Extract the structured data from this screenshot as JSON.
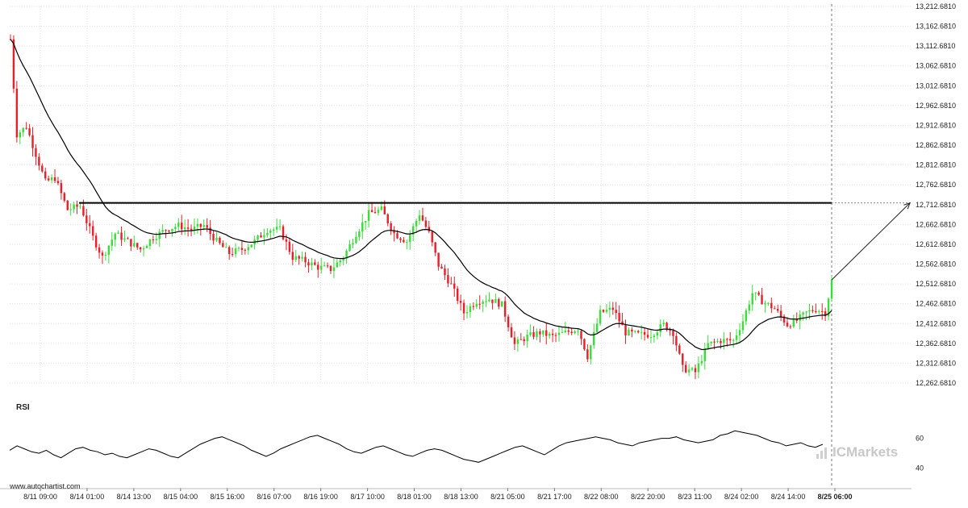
{
  "chart_data": {
    "type": "candlestick",
    "y_axis": {
      "min": 12262.681,
      "max": 13212.681,
      "ticks": [
        "13,212.6810",
        "13,162.6810",
        "13,112.6810",
        "13,062.6810",
        "13,012.6810",
        "12,962.6810",
        "12,912.6810",
        "12,862.6810",
        "12,812.6810",
        "12,762.6810",
        "12,712.6810",
        "12,662.6810",
        "12,612.6810",
        "12,562.6810",
        "12,512.6810",
        "12,462.6810",
        "12,412.6810",
        "12,362.6810",
        "12,312.6810",
        "12,262.6810"
      ]
    },
    "x_axis": {
      "ticks": [
        "8/11 09:00",
        "8/14 01:00",
        "8/14 13:00",
        "8/15 04:00",
        "8/15 16:00",
        "8/16 07:00",
        "8/16 19:00",
        "8/17 10:00",
        "8/18 01:00",
        "8/18 13:00",
        "8/21 05:00",
        "8/21 17:00",
        "8/22 08:00",
        "8/22 20:00",
        "8/23 11:00",
        "8/24 02:00",
        "8/24 14:00",
        "8/25 06:00"
      ],
      "highlighted": "8/25 06:00"
    },
    "resistance_level": 12717,
    "projection_target": 12717,
    "anchors": [
      [
        0,
        13130
      ],
      [
        2,
        12890
      ],
      [
        5,
        12910
      ],
      [
        8,
        12840
      ],
      [
        11,
        12770
      ],
      [
        14,
        12780
      ],
      [
        18,
        12700
      ],
      [
        22,
        12710
      ],
      [
        26,
        12630
      ],
      [
        29,
        12580
      ],
      [
        33,
        12640
      ],
      [
        37,
        12620
      ],
      [
        41,
        12600
      ],
      [
        45,
        12630
      ],
      [
        49,
        12650
      ],
      [
        53,
        12660
      ],
      [
        57,
        12650
      ],
      [
        61,
        12660
      ],
      [
        65,
        12620
      ],
      [
        69,
        12590
      ],
      [
        73,
        12600
      ],
      [
        77,
        12620
      ],
      [
        81,
        12650
      ],
      [
        85,
        12650
      ],
      [
        89,
        12580
      ],
      [
        93,
        12570
      ],
      [
        97,
        12555
      ],
      [
        101,
        12550
      ],
      [
        105,
        12580
      ],
      [
        109,
        12640
      ],
      [
        113,
        12690
      ],
      [
        117,
        12700
      ],
      [
        121,
        12640
      ],
      [
        125,
        12620
      ],
      [
        129,
        12690
      ],
      [
        132,
        12640
      ],
      [
        135,
        12560
      ],
      [
        139,
        12510
      ],
      [
        143,
        12440
      ],
      [
        147,
        12470
      ],
      [
        151,
        12475
      ],
      [
        155,
        12460
      ],
      [
        159,
        12360
      ],
      [
        163,
        12380
      ],
      [
        167,
        12390
      ],
      [
        171,
        12380
      ],
      [
        175,
        12390
      ],
      [
        179,
        12400
      ],
      [
        182,
        12330
      ],
      [
        186,
        12440
      ],
      [
        190,
        12450
      ],
      [
        194,
        12390
      ],
      [
        198,
        12385
      ],
      [
        202,
        12385
      ],
      [
        206,
        12410
      ],
      [
        209,
        12390
      ],
      [
        212,
        12300
      ],
      [
        216,
        12290
      ],
      [
        220,
        12360
      ],
      [
        224,
        12370
      ],
      [
        228,
        12370
      ],
      [
        231,
        12420
      ],
      [
        234,
        12490
      ],
      [
        237,
        12470
      ],
      [
        241,
        12450
      ],
      [
        245,
        12410
      ],
      [
        248,
        12420
      ],
      [
        251,
        12440
      ],
      [
        254,
        12450
      ],
      [
        257,
        12440
      ],
      [
        259,
        12520
      ]
    ],
    "series": [
      {
        "name": "RSI",
        "values": [
          52,
          55,
          53,
          51,
          50,
          52,
          49,
          47,
          50,
          53,
          54,
          52,
          51,
          49,
          50,
          48,
          47,
          49,
          51,
          53,
          52,
          50,
          48,
          47,
          50,
          53,
          56,
          58,
          60,
          61,
          59,
          57,
          55,
          52,
          50,
          48,
          50,
          53,
          55,
          57,
          59,
          61,
          62,
          60,
          58,
          56,
          53,
          51,
          50,
          52,
          54,
          55,
          53,
          51,
          49,
          48,
          50,
          52,
          53,
          52,
          50,
          48,
          46,
          45,
          44,
          46,
          48,
          50,
          52,
          54,
          55,
          53,
          51,
          49,
          52,
          55,
          57,
          58,
          59,
          60,
          61,
          60,
          59,
          57,
          56,
          55,
          57,
          58,
          59,
          60,
          60,
          61,
          59,
          58,
          57,
          58,
          59,
          62,
          63,
          65,
          64,
          63,
          62,
          60,
          58,
          57,
          55,
          56,
          57,
          55,
          54,
          56
        ]
      }
    ],
    "rsi_axis": {
      "min": 35,
      "max": 70,
      "ticks": [
        "60",
        "40"
      ]
    },
    "indicator_label": "RSI"
  },
  "footer": {
    "site": "www.autochartist.com",
    "brand": "ICMarkets"
  },
  "colors": {
    "up": "#3ddc3d",
    "down": "#e8202a",
    "line": "#000000",
    "grid": "#e2e2e2"
  }
}
